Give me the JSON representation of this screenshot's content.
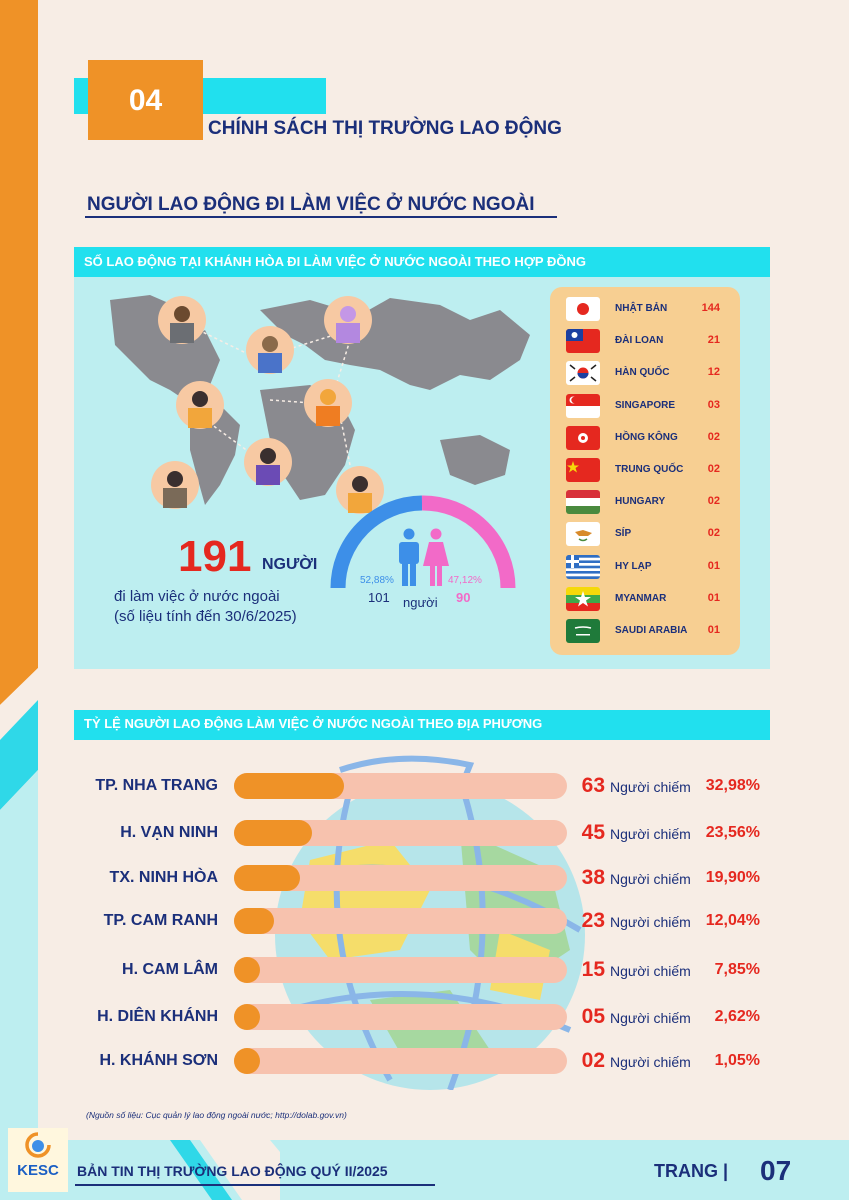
{
  "section_number": "04",
  "section_title": "CHÍNH SÁCH THỊ TRƯỜNG LAO ĐỘNG",
  "subsection_title": "NGƯỜI LAO ĐỘNG ĐI LÀM VIỆC Ở NƯỚC NGOÀI",
  "panel1": {
    "title": "SỐ LAO ĐỘNG TẠI KHÁNH HÒA ĐI LÀM VIỆC Ở NƯỚC NGOÀI THEO HỢP ĐỒNG",
    "total": "191",
    "total_unit": "NGƯỜI",
    "total_desc": "đi làm việc ở nước ngoài",
    "total_note": "(số liệu tính đến 30/6/2025)",
    "male_pct": "52,88%",
    "male_count": "101",
    "female_pct": "47,12%",
    "female_count": "90",
    "people_label": "người",
    "male_color": "#3d8fe8",
    "female_color": "#f26ac8",
    "countries": [
      {
        "name": "NHẬT BẢN",
        "value": "144",
        "flag": "japan-flag"
      },
      {
        "name": "ĐÀI LOAN",
        "value": "21",
        "flag": "taiwan-flag"
      },
      {
        "name": "HÀN QUỐC",
        "value": "12",
        "flag": "korea-flag"
      },
      {
        "name": "SINGAPORE",
        "value": "03",
        "flag": "singapore-flag"
      },
      {
        "name": "HỒNG KÔNG",
        "value": "02",
        "flag": "hongkong-flag"
      },
      {
        "name": "TRUNG QUỐC",
        "value": "02",
        "flag": "china-flag"
      },
      {
        "name": "HUNGARY",
        "value": "02",
        "flag": "hungary-flag"
      },
      {
        "name": "SÍP",
        "value": "02",
        "flag": "cyprus-flag"
      },
      {
        "name": "HY LẠP",
        "value": "01",
        "flag": "greece-flag"
      },
      {
        "name": "MYANMAR",
        "value": "01",
        "flag": "myanmar-flag"
      },
      {
        "name": "SAUDI ARABIA",
        "value": "01",
        "flag": "saudi-flag"
      }
    ]
  },
  "panel2": {
    "title": "TỶ LỆ NGƯỜI LAO ĐỘNG LÀM VIỆC Ở NƯỚC NGOÀI THEO ĐỊA PHƯƠNG",
    "label": "Người chiếm",
    "rows": [
      {
        "name": "TP. NHA TRANG",
        "count": "63",
        "pct": "32,98%",
        "share": 0.3298
      },
      {
        "name": "H. VẠN NINH",
        "count": "45",
        "pct": "23,56%",
        "share": 0.2356
      },
      {
        "name": "TX. NINH HÒA",
        "count": "38",
        "pct": "19,90%",
        "share": 0.199
      },
      {
        "name": "TP. CAM RANH",
        "count": "23",
        "pct": "12,04%",
        "share": 0.1204
      },
      {
        "name": "H. CAM LÂM",
        "count": "15",
        "pct": "7,85%",
        "share": 0.0785
      },
      {
        "name": "H. DIÊN KHÁNH",
        "count": "05",
        "pct": "2,62%",
        "share": 0.0262
      },
      {
        "name": "H. KHÁNH SƠN",
        "count": "02",
        "pct": "1,05%",
        "share": 0.0105
      }
    ]
  },
  "source_note": "(Nguồn số liệu: Cục quản lý lao động ngoài nước; http://dolab.gov.vn)",
  "footer": {
    "logo": "KESC",
    "bulletin": "BẢN TIN THỊ TRƯỜNG LAO ĐỘNG QUÝ II/2025",
    "page_label": "TRANG |",
    "page_number": "07"
  }
}
